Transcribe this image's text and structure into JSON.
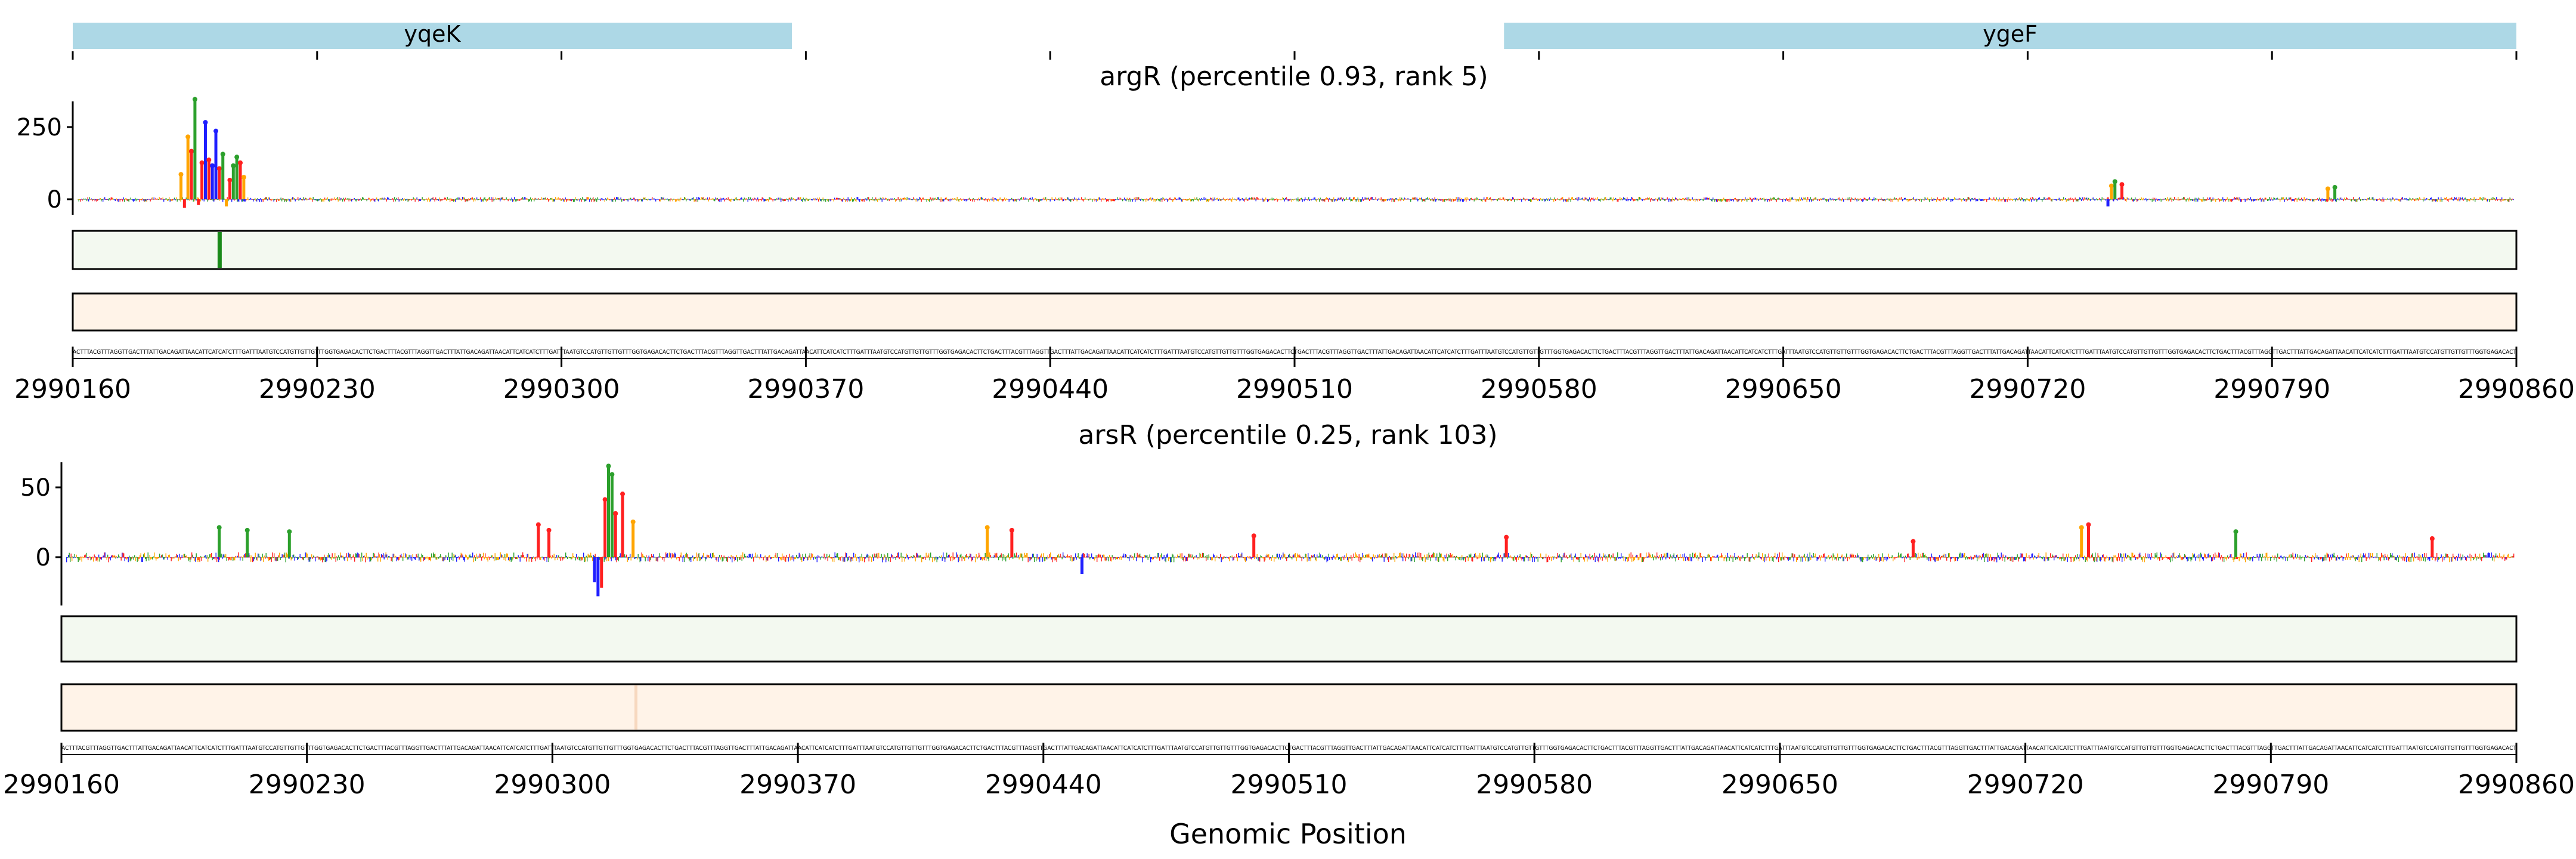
{
  "genes": [
    {
      "name": "yqeK",
      "start": 2990160,
      "end": 2990366,
      "color": "#add8e6"
    },
    {
      "name": "ygeF",
      "start": 2990570,
      "end": 2990860,
      "color": "#add8e6"
    }
  ],
  "x_ticks": [
    "2990160",
    "2990230",
    "2990300",
    "2990370",
    "2990440",
    "2990510",
    "2990580",
    "2990650",
    "2990720",
    "2990790",
    "2990860"
  ],
  "xlabel": "Genomic Position",
  "colors": {
    "A": "#2ca02c",
    "C": "#1f1fff",
    "G": "#ffa500",
    "T": "#ff2020",
    "green_track": "#f3f9f0",
    "orange_track": "#fff3e8",
    "hit": "#1a8a1a"
  },
  "chart_data": [
    {
      "type": "bar",
      "title": "argR (percentile 0.93, rank 5)",
      "xlim": [
        2990160,
        2990860
      ],
      "ylim": [
        -40,
        350
      ],
      "y_ticks": [
        "250",
        "0"
      ],
      "peaks": [
        {
          "x": 2990191,
          "value": 80,
          "base": "G"
        },
        {
          "x": 2990193,
          "value": 210,
          "base": "G"
        },
        {
          "x": 2990194,
          "value": 160,
          "base": "T"
        },
        {
          "x": 2990195,
          "value": 340,
          "base": "A"
        },
        {
          "x": 2990197,
          "value": 120,
          "base": "T"
        },
        {
          "x": 2990198,
          "value": 260,
          "base": "C"
        },
        {
          "x": 2990199,
          "value": 130,
          "base": "T"
        },
        {
          "x": 2990200,
          "value": 110,
          "base": "C"
        },
        {
          "x": 2990201,
          "value": 230,
          "base": "C"
        },
        {
          "x": 2990202,
          "value": 100,
          "base": "T"
        },
        {
          "x": 2990203,
          "value": 150,
          "base": "A"
        },
        {
          "x": 2990205,
          "value": 60,
          "base": "T"
        },
        {
          "x": 2990206,
          "value": 110,
          "base": "A"
        },
        {
          "x": 2990207,
          "value": 140,
          "base": "A"
        },
        {
          "x": 2990208,
          "value": 120,
          "base": "T"
        },
        {
          "x": 2990209,
          "value": 70,
          "base": "G"
        },
        {
          "x": 2990192,
          "value": -30,
          "base": "T"
        },
        {
          "x": 2990196,
          "value": -20,
          "base": "T"
        },
        {
          "x": 2990204,
          "value": -25,
          "base": "G"
        },
        {
          "x": 2990744,
          "value": 40,
          "base": "G"
        },
        {
          "x": 2990745,
          "value": 55,
          "base": "A"
        },
        {
          "x": 2990747,
          "value": 45,
          "base": "T"
        },
        {
          "x": 2990743,
          "value": -25,
          "base": "C"
        },
        {
          "x": 2990806,
          "value": 30,
          "base": "G"
        },
        {
          "x": 2990808,
          "value": 35,
          "base": "A"
        }
      ],
      "green_track_hit": 2990202
    },
    {
      "type": "bar",
      "title": "arsR (percentile 0.25, rank 103)",
      "xlim": [
        2990160,
        2990860
      ],
      "ylim": [
        -28,
        68
      ],
      "y_ticks": [
        "50",
        "0"
      ],
      "peaks": [
        {
          "x": 2990205,
          "value": 20,
          "base": "A"
        },
        {
          "x": 2990213,
          "value": 18,
          "base": "A"
        },
        {
          "x": 2990225,
          "value": 17,
          "base": "A"
        },
        {
          "x": 2990296,
          "value": 22,
          "base": "T"
        },
        {
          "x": 2990299,
          "value": 18,
          "base": "T"
        },
        {
          "x": 2990315,
          "value": 40,
          "base": "T"
        },
        {
          "x": 2990316,
          "value": 64,
          "base": "A"
        },
        {
          "x": 2990317,
          "value": 58,
          "base": "A"
        },
        {
          "x": 2990318,
          "value": 30,
          "base": "T"
        },
        {
          "x": 2990320,
          "value": 44,
          "base": "T"
        },
        {
          "x": 2990323,
          "value": 24,
          "base": "G"
        },
        {
          "x": 2990312,
          "value": -18,
          "base": "C"
        },
        {
          "x": 2990313,
          "value": -28,
          "base": "C"
        },
        {
          "x": 2990314,
          "value": -22,
          "base": "T"
        },
        {
          "x": 2990424,
          "value": 20,
          "base": "G"
        },
        {
          "x": 2990431,
          "value": 18,
          "base": "T"
        },
        {
          "x": 2990451,
          "value": -12,
          "base": "C"
        },
        {
          "x": 2990500,
          "value": 14,
          "base": "T"
        },
        {
          "x": 2990572,
          "value": 13,
          "base": "T"
        },
        {
          "x": 2990688,
          "value": 10,
          "base": "T"
        },
        {
          "x": 2990736,
          "value": 20,
          "base": "G"
        },
        {
          "x": 2990738,
          "value": 22,
          "base": "T"
        },
        {
          "x": 2990780,
          "value": 17,
          "base": "A"
        },
        {
          "x": 2990836,
          "value": 12,
          "base": "T"
        }
      ]
    }
  ]
}
